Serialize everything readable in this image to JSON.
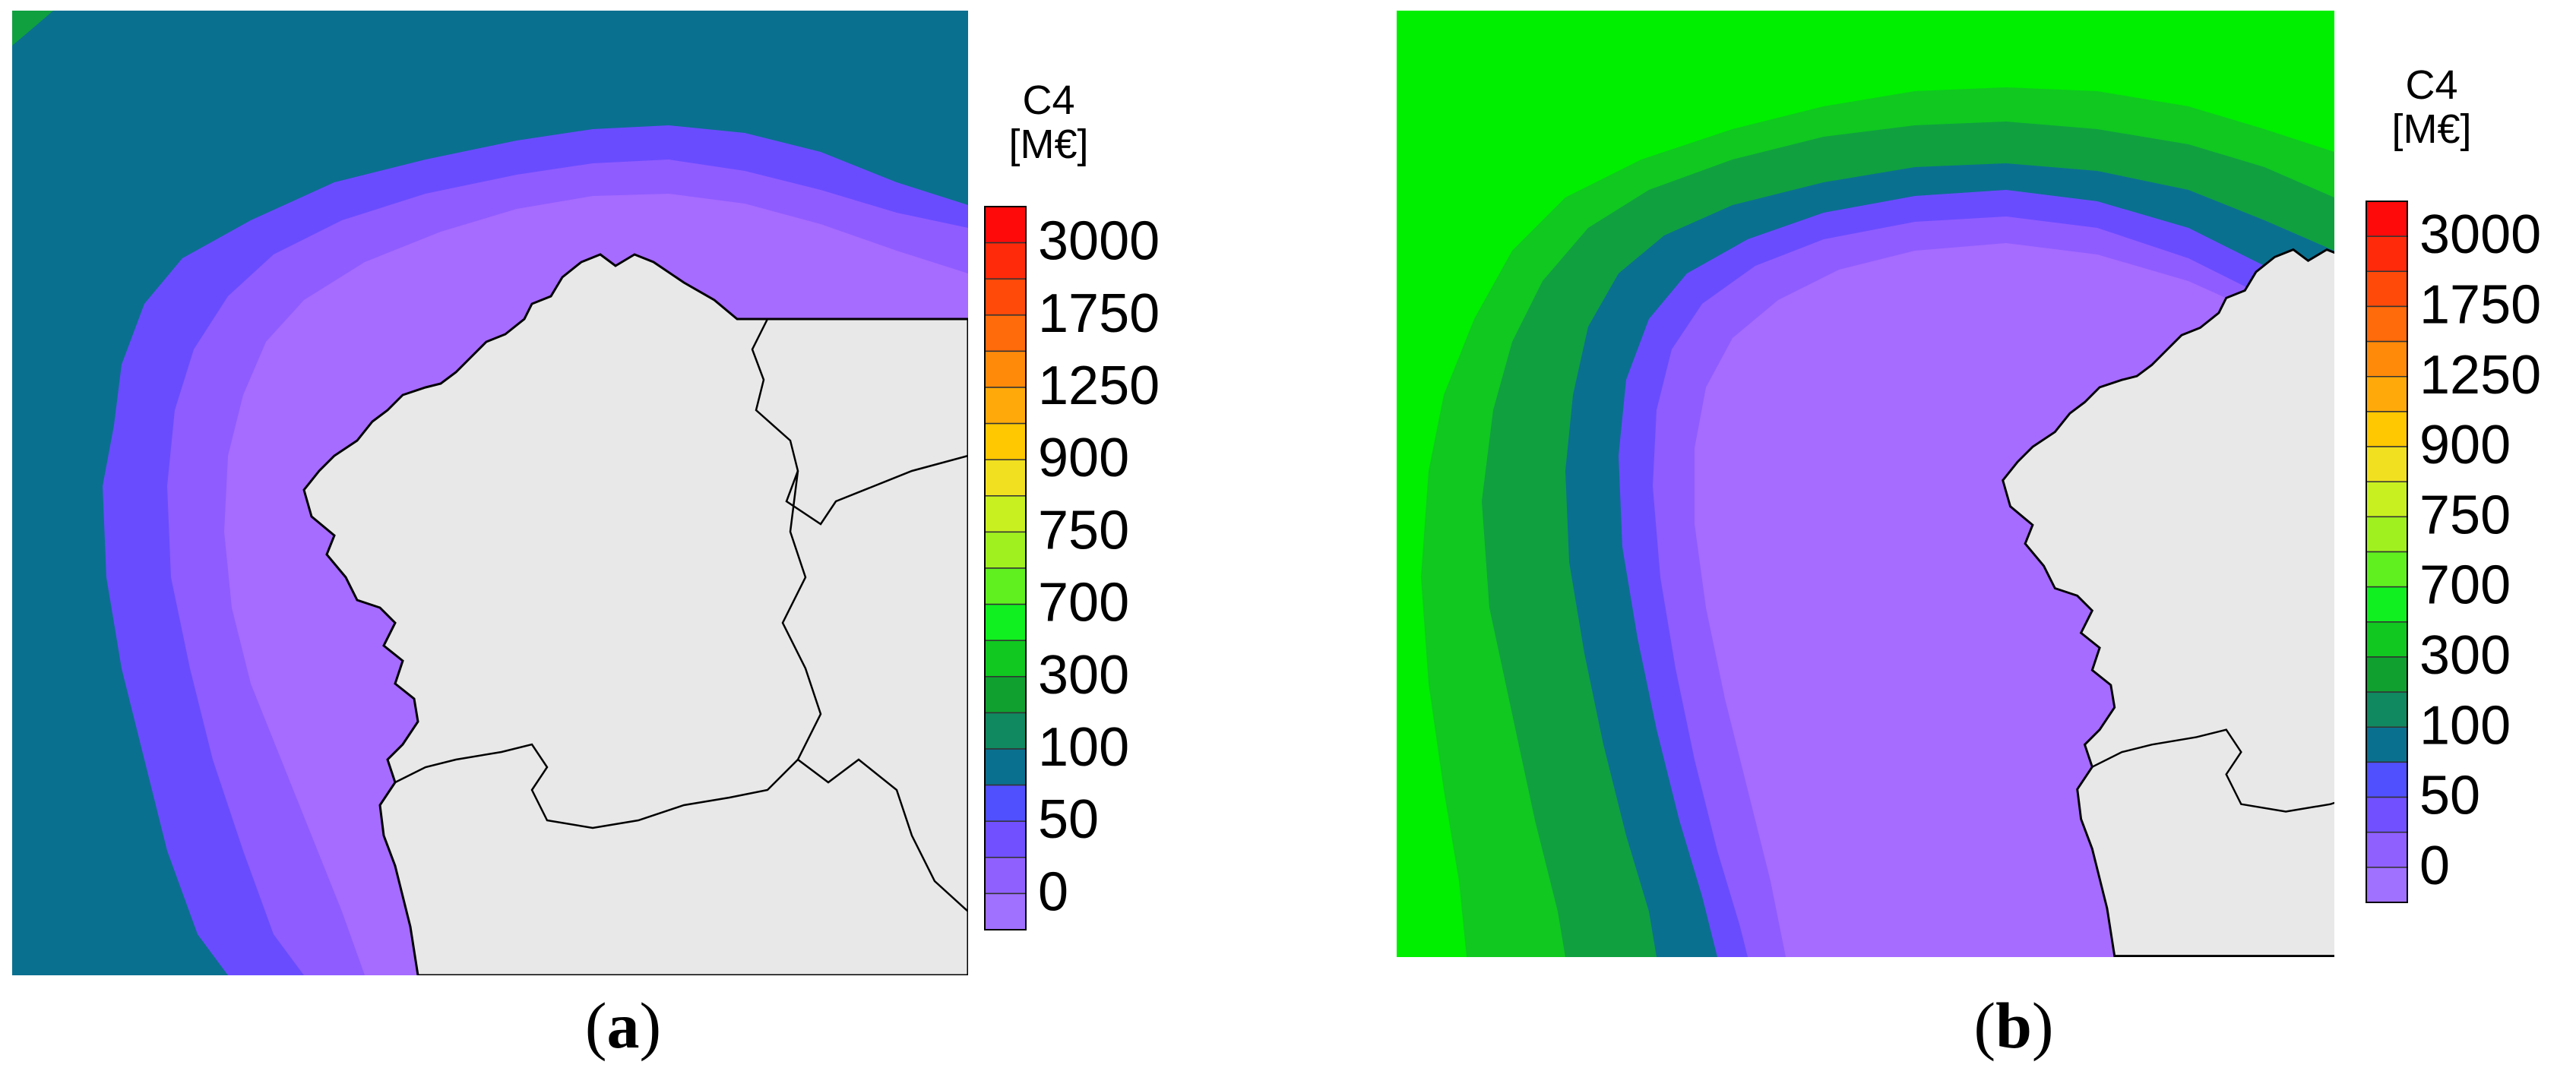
{
  "panels": [
    {
      "id": "a",
      "caption": "a",
      "legend_title_line1": "C4",
      "legend_title_line2": "[M€]",
      "legend_labels": [
        "3000",
        "1750",
        "1250",
        "900",
        "750",
        "700",
        "300",
        "100",
        "50",
        "0"
      ]
    },
    {
      "id": "b",
      "caption": "b",
      "legend_title_line1": "C4",
      "legend_title_line2": "[M€]",
      "legend_labels": [
        "3000",
        "1750",
        "1250",
        "900",
        "750",
        "700",
        "300",
        "100",
        "50",
        "0"
      ]
    }
  ],
  "colorbar": [
    "#ff0a0a",
    "#ff2a0a",
    "#ff4a0a",
    "#ff6a0a",
    "#ff8a0a",
    "#ffaa0a",
    "#ffc800",
    "#f0e020",
    "#c8f020",
    "#a0f020",
    "#60f020",
    "#10f020",
    "#10c820",
    "#10a030",
    "#108860",
    "#0a7090",
    "#5050ff",
    "#7050ff",
    "#9060ff",
    "#a070ff"
  ],
  "colors": {
    "land": "#e8e8e8",
    "coast_line": "#000000",
    "zone_0_50": "#a66bff",
    "zone_50_100a": "#8f5cff",
    "zone_50_100b": "#6a4cff",
    "zone_100_300": "#0a7090",
    "zone_300_700": "#10a040",
    "zone_700_750": "#10c820",
    "zone_750_900": "#00ee00"
  }
}
